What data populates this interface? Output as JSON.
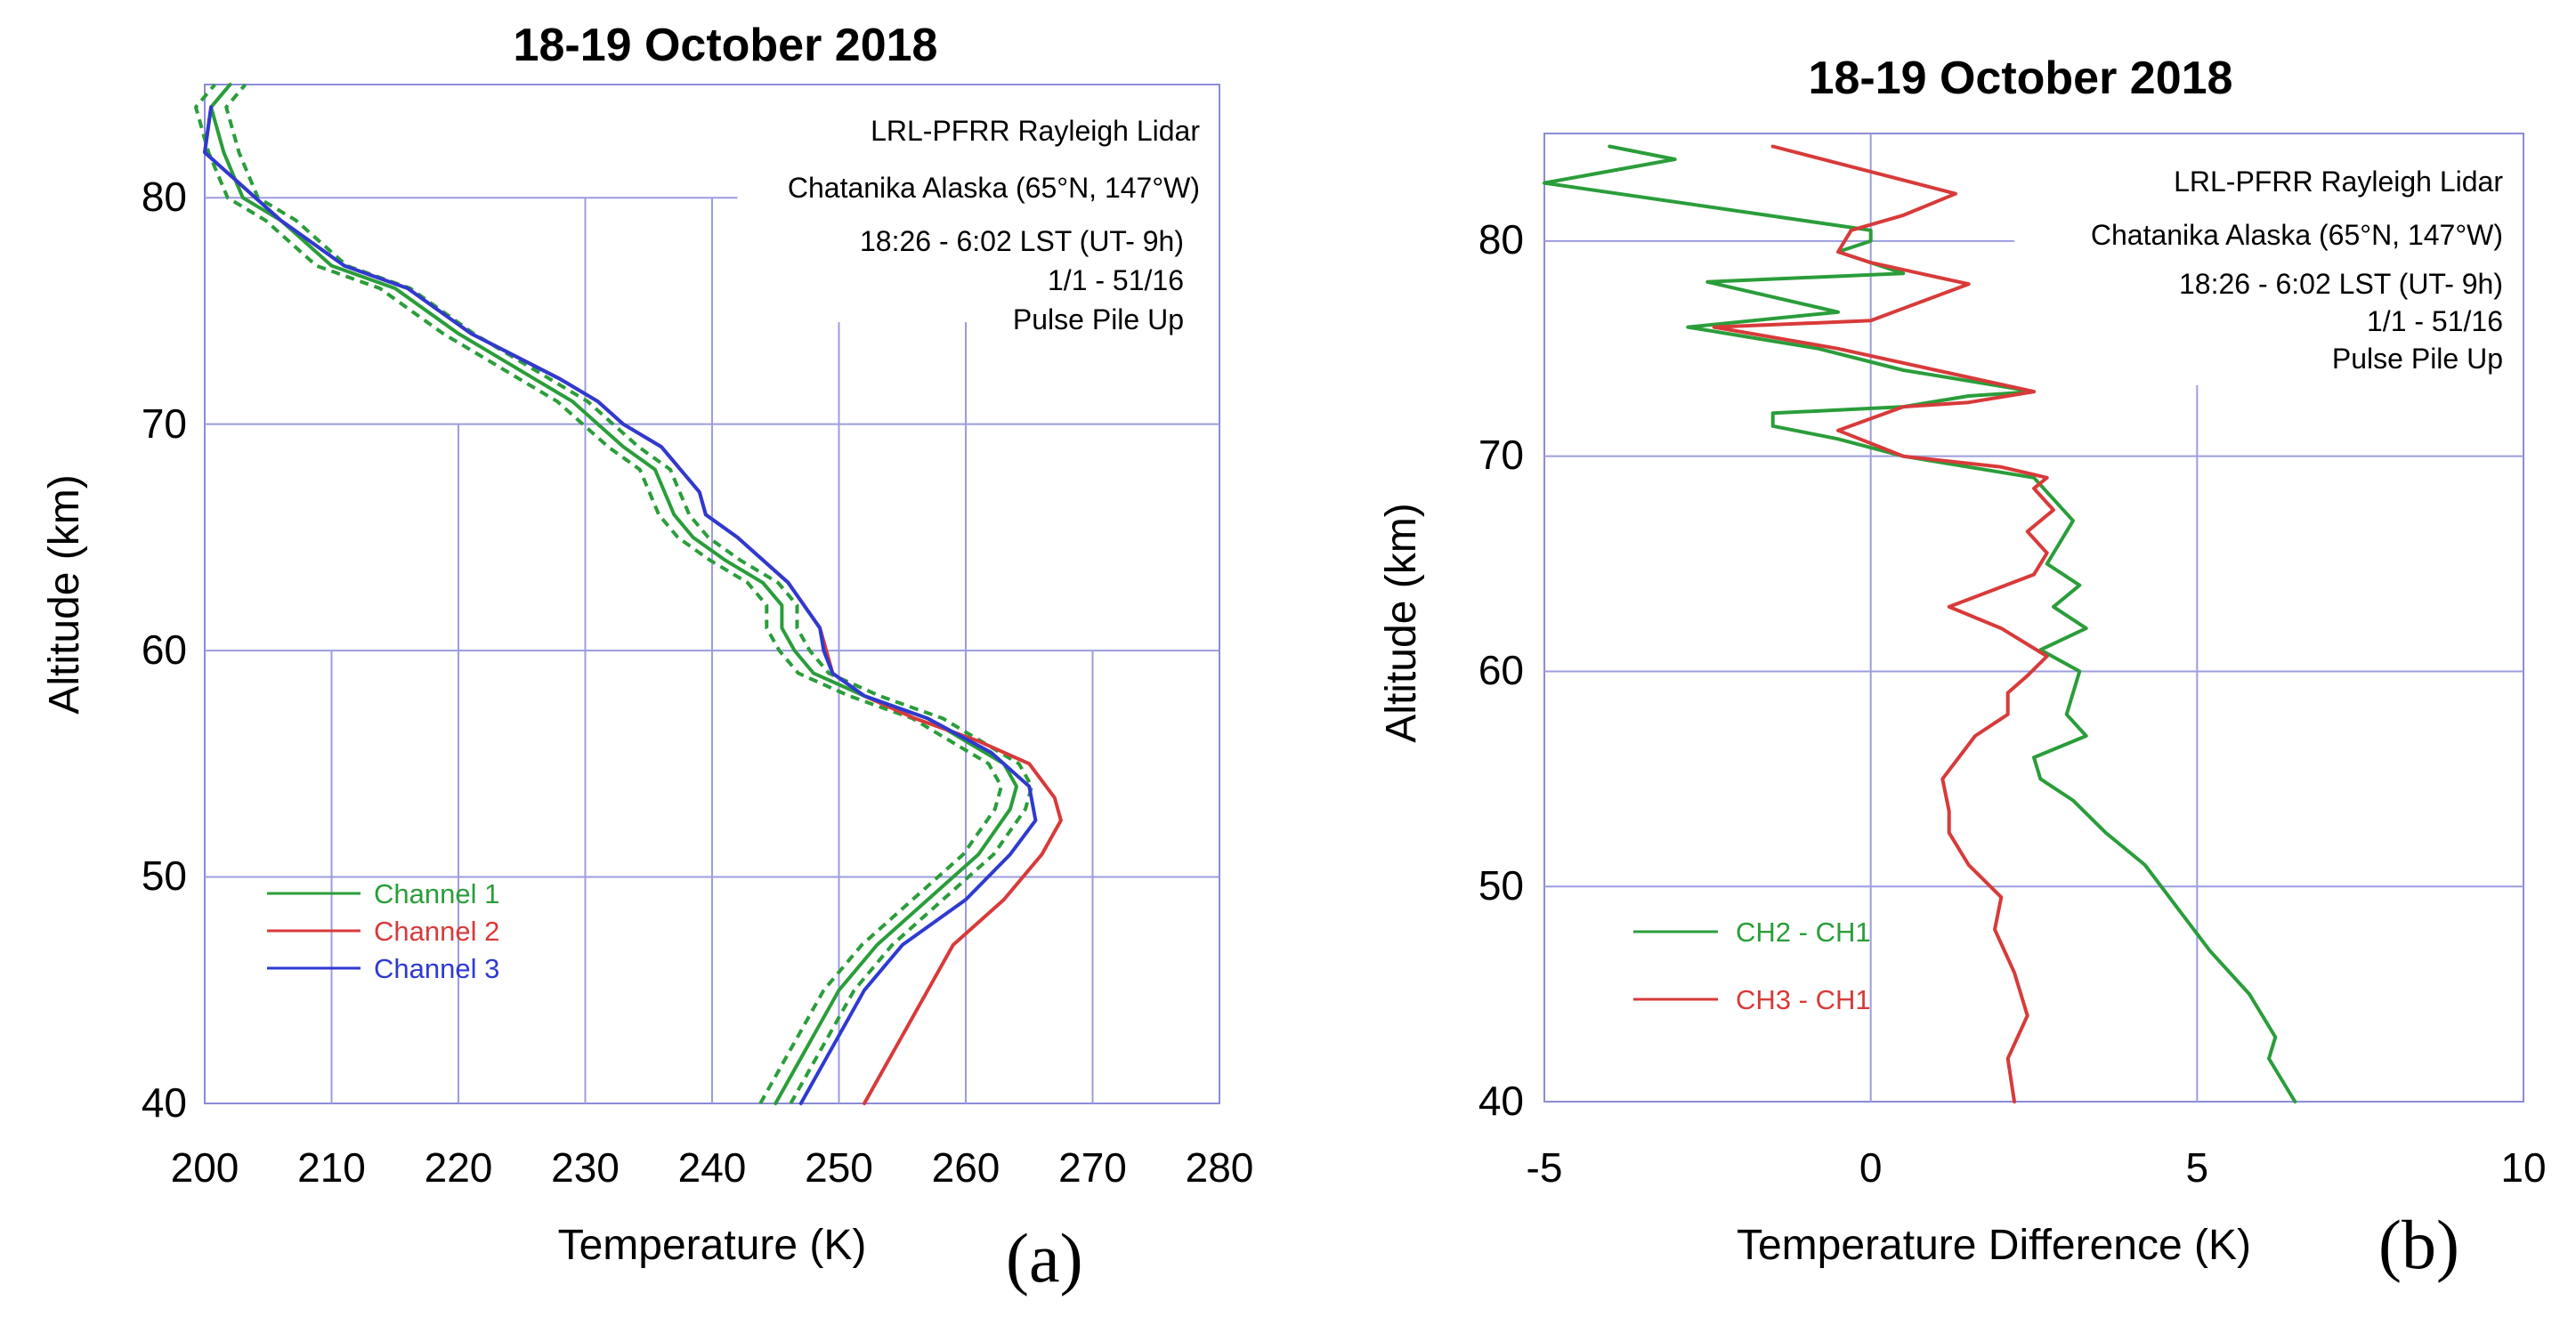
{
  "chart_data": [
    {
      "type": "line",
      "panel_label": "(a)",
      "title": "18-19 October 2018",
      "xlabel": "Temperature (K)",
      "ylabel": "Altitude (km)",
      "xlim": [
        200,
        280
      ],
      "ylim": [
        40,
        85
      ],
      "xticks": [
        "200",
        "210",
        "220",
        "230",
        "240",
        "250",
        "260",
        "270",
        "280"
      ],
      "yticks": [
        "40",
        "50",
        "60",
        "70",
        "80"
      ],
      "grid": "partial",
      "annotations": [
        "LRL-PFRR Rayleigh Lidar",
        "Chatanika Alaska (65°N, 147°W)",
        "18:26 - 6:02 LST (UT- 9h)",
        "1/1 - 51/16",
        "Pulse Pile Up"
      ],
      "legend_position": "bottom-left",
      "series": [
        {
          "name": "Channel 1",
          "color": "#2a9d3a",
          "x": [
            245,
            248,
            250,
            253,
            257,
            261,
            263.5,
            264,
            263,
            260,
            257,
            252,
            248,
            246.5,
            245.5,
            245.5,
            244,
            241,
            238.5,
            237,
            235.5,
            233,
            231,
            229,
            226,
            223,
            220,
            215,
            210,
            206,
            203,
            201.5,
            200.5,
            202
          ],
          "y": [
            40,
            43,
            45,
            47,
            49,
            51,
            53,
            54,
            55,
            56,
            57,
            58,
            59,
            60,
            61,
            62,
            63,
            64,
            65,
            66,
            68,
            69,
            70,
            71,
            72,
            73,
            74,
            76,
            77,
            79,
            80,
            82,
            84,
            85
          ]
        },
        {
          "name": "Channel 2",
          "color": "#d83a3a",
          "x": [
            252,
            255,
            257,
            259,
            263,
            266,
            267.5,
            267,
            265,
            261,
            256,
            252,
            249.5,
            249,
            248.5,
            246,
            242,
            239.5,
            239,
            236,
            233,
            231,
            228,
            224.5,
            221,
            216,
            211,
            206,
            202,
            200,
            200.5
          ],
          "y": [
            40,
            43,
            45,
            47,
            49,
            51,
            52.5,
            53.5,
            55,
            56,
            57,
            58,
            59,
            60,
            61,
            63,
            65,
            66,
            67,
            69,
            70,
            71,
            72,
            73,
            74,
            76,
            77,
            79,
            81,
            82,
            84
          ]
        },
        {
          "name": "Channel 3",
          "color": "#2e3ad0",
          "x": [
            247,
            250,
            252,
            255,
            260,
            263.5,
            265.5,
            265,
            262,
            257,
            252,
            249.5,
            248.8,
            248.5,
            246,
            242,
            239.5,
            239,
            236,
            233,
            231,
            228,
            224.5,
            221,
            216,
            211,
            206,
            202,
            200,
            200.5
          ],
          "y": [
            40,
            43,
            45,
            47,
            49,
            51,
            52.5,
            54,
            55.5,
            57,
            58,
            59,
            60,
            61,
            63,
            65,
            66,
            67,
            69,
            70,
            71,
            72,
            73,
            74,
            76,
            77,
            79,
            81,
            82,
            84
          ]
        }
      ]
    },
    {
      "type": "line",
      "panel_label": "(b)",
      "title": "18-19 October 2018",
      "xlabel": "Temperature Difference (K)",
      "ylabel": "Altitude (km)",
      "xlim": [
        -5,
        10
      ],
      "ylim": [
        40,
        85
      ],
      "xticks": [
        "-5",
        "0",
        "5",
        "10"
      ],
      "yticks": [
        "40",
        "50",
        "60",
        "70",
        "80"
      ],
      "grid": "partial",
      "annotations": [
        "LRL-PFRR Rayleigh Lidar",
        "Chatanika Alaska (65°N, 147°W)",
        "18:26 - 6:02 LST (UT- 9h)",
        "1/1 - 51/16",
        "Pulse Pile Up"
      ],
      "legend_position": "bottom-left",
      "series": [
        {
          "name": "CH2 - CH1",
          "color": "#2a9d3a",
          "x": [
            6.5,
            6.1,
            6.2,
            5.8,
            5.2,
            4.7,
            4.2,
            3.6,
            3.1,
            2.6,
            2.5,
            3.3,
            3.0,
            3.2,
            2.6,
            3.3,
            2.8,
            3.2,
            2.7,
            3.1,
            2.5,
            1.5,
            0.5,
            -0.5,
            -1.5,
            -1.5,
            0.5,
            1.5,
            2.5,
            0.5,
            -0.8,
            -2.8,
            -0.5,
            -2.5,
            0.5,
            -0.5,
            0.0,
            0.0,
            -5.0,
            -3.0,
            -4.0
          ],
          "y": [
            40,
            42,
            43,
            45,
            47,
            49,
            51,
            52.5,
            54,
            55,
            56,
            57,
            58,
            60,
            61,
            62,
            63,
            64,
            65,
            67,
            69,
            69.5,
            70,
            70.8,
            71.4,
            72,
            72.3,
            72.8,
            73,
            74,
            75,
            76,
            76.7,
            78.1,
            78.5,
            79.5,
            80,
            80.5,
            82.7,
            83.8,
            84.4
          ]
        },
        {
          "name": "CH3 - CH1",
          "color": "#d83a3a",
          "x": [
            2.2,
            2.1,
            2.4,
            2.2,
            1.9,
            2.0,
            1.5,
            1.2,
            1.2,
            1.1,
            1.6,
            2.1,
            2.1,
            2.4,
            2.7,
            2.0,
            1.2,
            2.5,
            2.7,
            2.4,
            2.8,
            2.5,
            2.7,
            2.0,
            0.5,
            -0.5,
            0.5,
            1.5,
            2.5,
            1.0,
            -0.5,
            -2.4,
            0.0,
            1.5,
            0.0,
            -0.5,
            -0.3,
            0.5,
            1.3,
            -1.5
          ],
          "y": [
            40,
            42,
            44,
            46,
            48,
            49.5,
            51,
            52.5,
            53.5,
            55,
            57,
            58,
            59,
            59.8,
            60.7,
            62,
            63,
            64.5,
            65.5,
            66.5,
            67.5,
            68.5,
            69,
            69.5,
            70,
            71.2,
            72.3,
            72.5,
            73,
            74,
            75,
            76,
            76.3,
            78,
            79,
            79.5,
            80.5,
            81.2,
            82.2,
            84.4
          ]
        }
      ]
    }
  ]
}
